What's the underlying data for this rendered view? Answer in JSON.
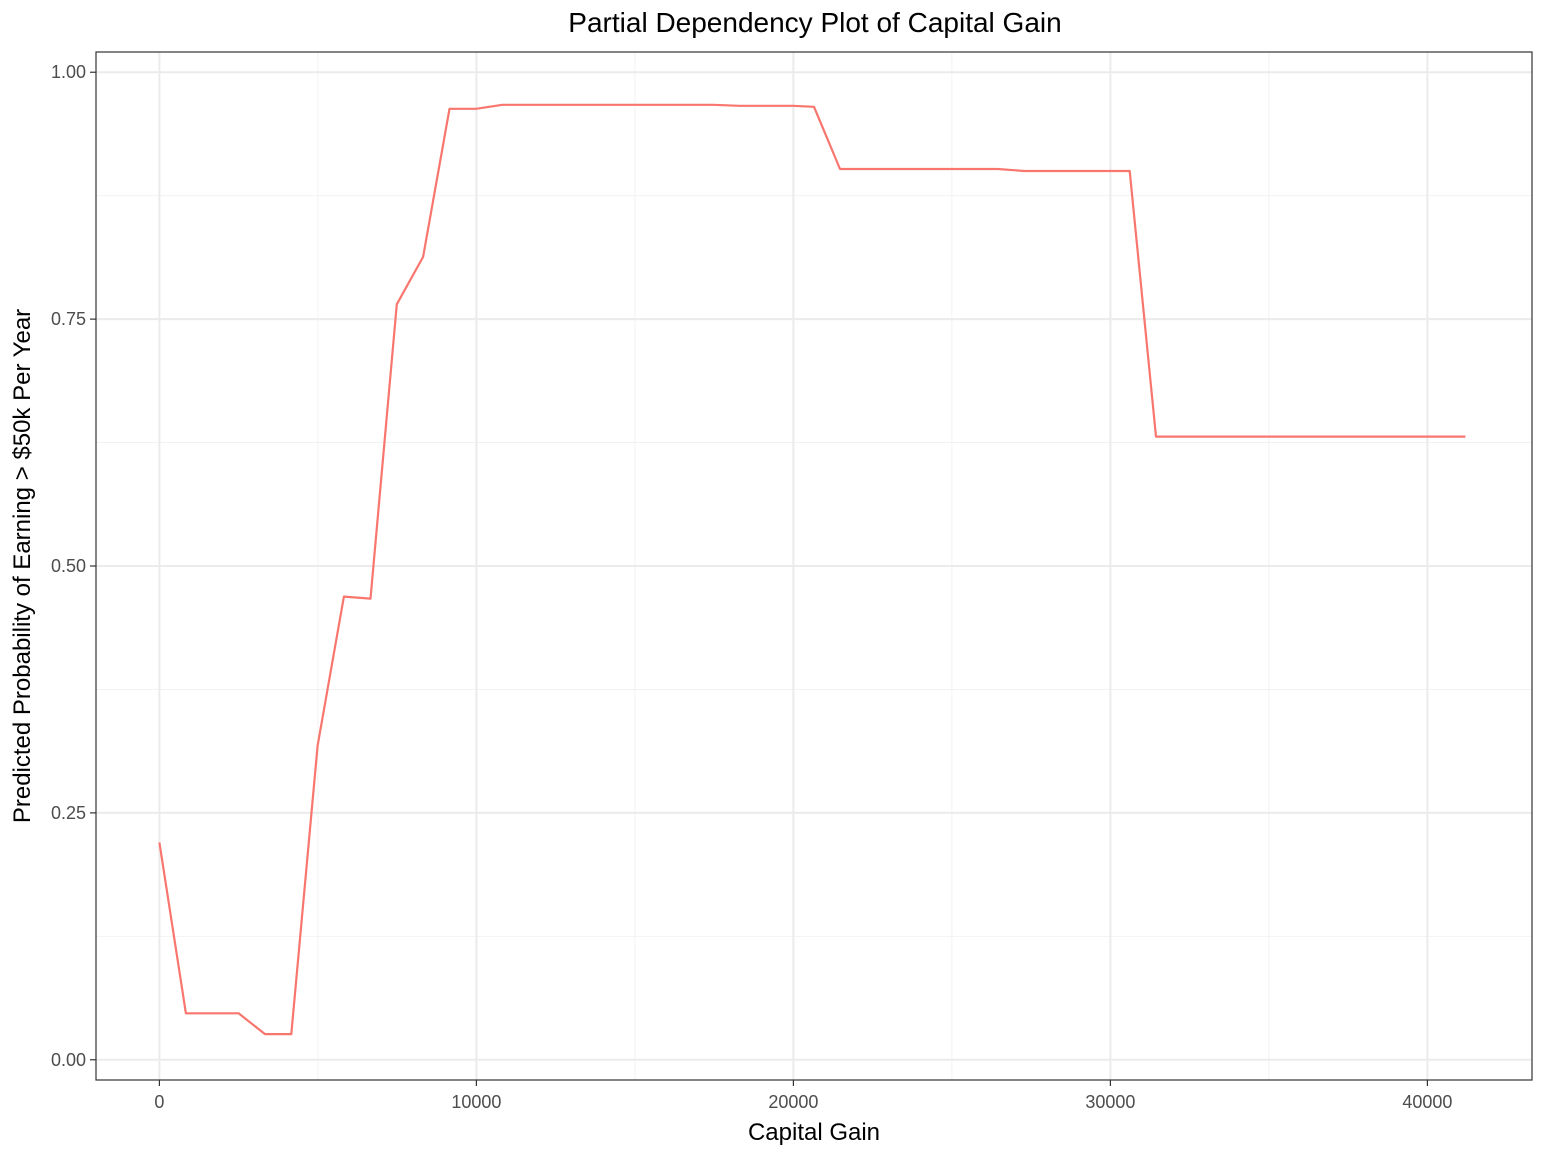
{
  "chart_data": {
    "type": "line",
    "title": "Partial Dependency Plot of Capital Gain",
    "xlabel": "Capital Gain",
    "ylabel": "Predicted Probability of Earning > $50k Per Year",
    "xlim": [
      -2000,
      43300
    ],
    "ylim": [
      -0.0205,
      1.0205
    ],
    "x_ticks": [
      0,
      10000,
      20000,
      30000,
      40000
    ],
    "x_tick_labels": [
      "0",
      "10000",
      "20000",
      "30000",
      "40000"
    ],
    "x_minor": [
      5000,
      15000,
      25000,
      35000
    ],
    "y_ticks": [
      0,
      0.25,
      0.5,
      0.75,
      1.0
    ],
    "y_tick_labels": [
      "0.00",
      "0.25",
      "0.50",
      "0.75",
      "1.00"
    ],
    "y_minor": [
      0.125,
      0.375,
      0.625,
      0.875
    ],
    "grid": true,
    "legend": "none",
    "series": [
      {
        "color": "#F8766D",
        "x": [
          0,
          835,
          2500,
          3330,
          4160,
          4990,
          5820,
          6660,
          7490,
          8320,
          9150,
          9990,
          10820,
          17470,
          18300,
          19980,
          20650,
          21470,
          26450,
          27280,
          30610,
          31440,
          41200
        ],
        "y": [
          0.22,
          0.047,
          0.047,
          0.026,
          0.026,
          0.318,
          0.469,
          0.467,
          0.765,
          0.813,
          0.963,
          0.963,
          0.967,
          0.967,
          0.966,
          0.966,
          0.965,
          0.902,
          0.902,
          0.9,
          0.9,
          0.631,
          0.631
        ]
      }
    ]
  }
}
